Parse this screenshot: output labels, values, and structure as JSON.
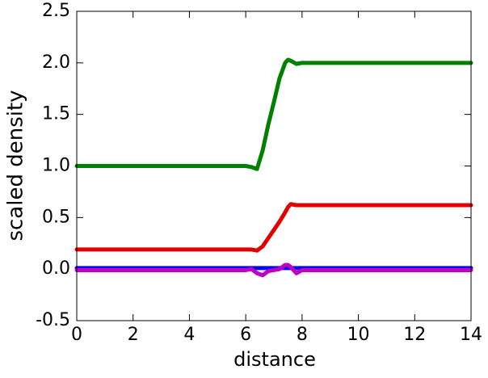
{
  "chart_data": {
    "type": "line",
    "xlabel": "distance",
    "ylabel": "scaled density",
    "x": [
      0,
      1,
      2,
      3,
      4,
      5,
      6,
      6.2,
      6.4,
      6.6,
      6.8,
      7,
      7.2,
      7.4,
      7.5,
      7.6,
      7.8,
      8,
      9,
      10,
      11,
      12,
      13,
      14
    ],
    "series": [
      {
        "color": "#008000",
        "values": [
          1,
          1,
          1,
          1,
          1,
          1,
          1,
          0.99,
          0.97,
          1.15,
          1.4,
          1.62,
          1.85,
          2.0,
          2.03,
          2.02,
          1.99,
          2,
          2,
          2,
          2,
          2,
          2,
          2
        ]
      },
      {
        "color": "#e00000",
        "values": [
          0.19,
          0.19,
          0.19,
          0.19,
          0.19,
          0.19,
          0.19,
          0.19,
          0.18,
          0.22,
          0.3,
          0.38,
          0.46,
          0.55,
          0.6,
          0.63,
          0.62,
          0.62,
          0.62,
          0.62,
          0.62,
          0.62,
          0.62,
          0.62
        ]
      },
      {
        "color": "#0000ff",
        "values": [
          0.01,
          0.01,
          0.01,
          0.01,
          0.01,
          0.01,
          0.01,
          0.01,
          0.01,
          0.01,
          0.01,
          0.01,
          0.01,
          0.01,
          0.01,
          0.01,
          0.01,
          0.01,
          0.01,
          0.01,
          0.01,
          0.01,
          0.01,
          0.01
        ]
      },
      {
        "color": "#c000c0",
        "values": [
          -0.01,
          -0.01,
          -0.01,
          -0.01,
          -0.01,
          -0.01,
          -0.01,
          0.0,
          -0.04,
          -0.06,
          -0.02,
          -0.01,
          0.0,
          0.04,
          0.04,
          0.02,
          -0.04,
          -0.01,
          -0.01,
          -0.01,
          -0.01,
          -0.01,
          -0.01,
          -0.01
        ]
      }
    ],
    "xlim": [
      0,
      14
    ],
    "xticks": [
      0,
      2,
      4,
      6,
      8,
      10,
      12,
      14
    ],
    "ylim": [
      -0.5,
      2.5
    ],
    "yticks": [
      -0.5,
      {
        "value": 0,
        "label": "0.0"
      },
      0.5,
      {
        "value": 1,
        "label": "1.0"
      },
      1.5,
      {
        "value": 2,
        "label": "2.0"
      },
      2.5
    ]
  }
}
